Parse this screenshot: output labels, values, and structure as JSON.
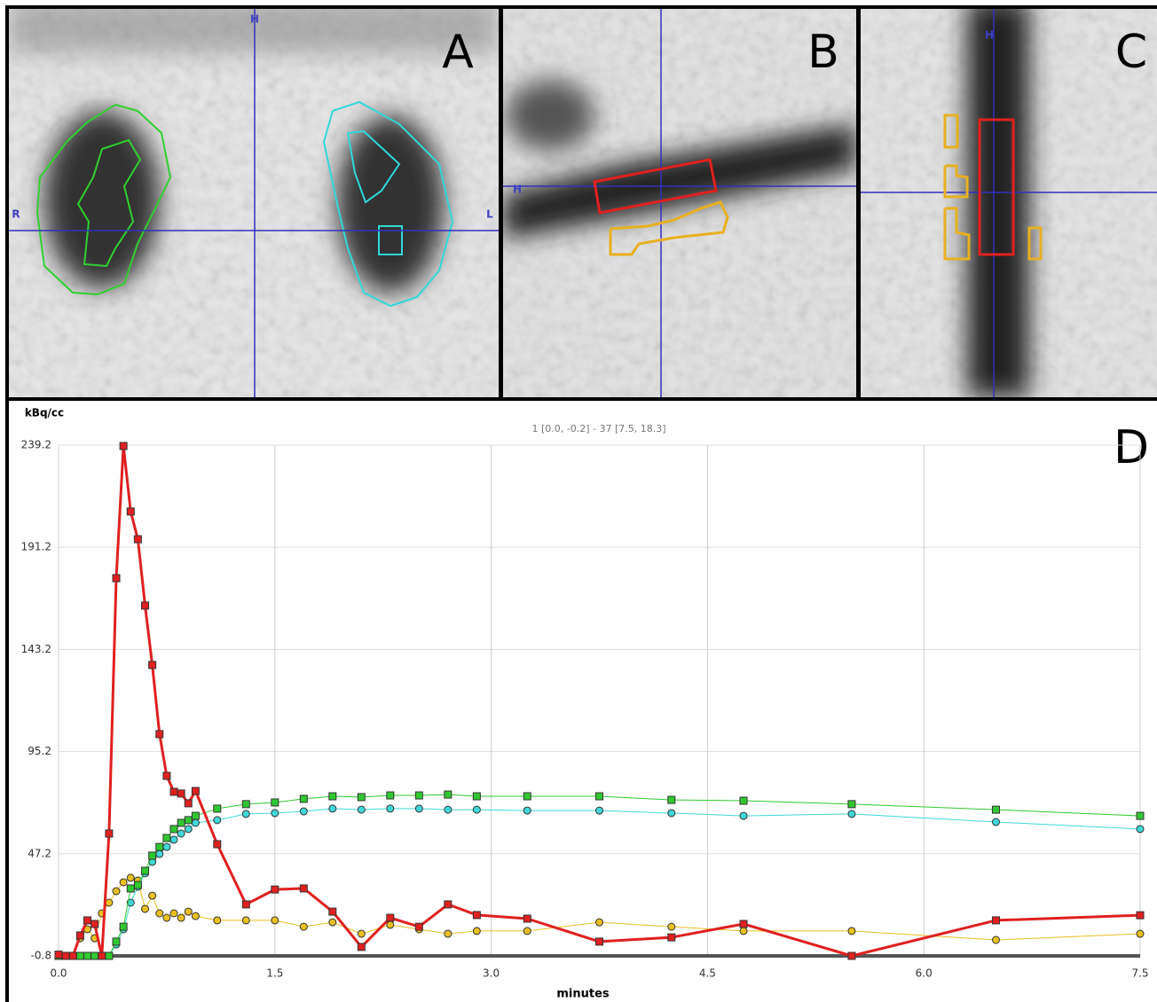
{
  "panels": [
    {
      "label": "A",
      "orientation": [
        "H",
        "R",
        "L"
      ]
    },
    {
      "label": "B",
      "orientation": [
        "H"
      ]
    },
    {
      "label": "C",
      "orientation": [
        "H"
      ]
    }
  ],
  "chart_data": {
    "type": "line",
    "label": "D",
    "annotation": "1 [0.0, -0.2] - 37 [7.5, 18.3]",
    "x_label": "minutes",
    "y_label": "kBq/cc",
    "x": [
      0,
      0.05,
      0.1,
      0.15,
      0.2,
      0.25,
      0.3,
      0.35,
      0.4,
      0.45,
      0.5,
      0.55,
      0.6,
      0.65,
      0.7,
      0.75,
      0.8,
      0.85,
      0.9,
      0.95,
      1.1,
      1.3,
      1.5,
      1.7,
      1.9,
      2.1,
      2.3,
      2.5,
      2.7,
      2.9,
      3.25,
      3.75,
      4.25,
      4.75,
      5.5,
      6.5,
      7.5
    ],
    "xlim": [
      0,
      7.5
    ],
    "xticks": [
      {
        "value": 0,
        "label": "0.0"
      },
      1.5,
      {
        "value": 3,
        "label": "3.0"
      },
      4.5,
      {
        "value": 6,
        "label": "6.0"
      },
      7.5
    ],
    "ylim": [
      -0.8,
      239.2
    ],
    "yticks": [
      -0.8,
      47.2,
      95.2,
      143.2,
      191.2,
      239.2
    ],
    "grid": true,
    "series": [
      {
        "color": "#e8c020",
        "marker": "circle",
        "width": 1,
        "values": [
          -0.8,
          -0.8,
          -0.8,
          7.5,
          11.7,
          7.5,
          19.2,
          24.2,
          29.6,
          33.8,
          35.9,
          34.6,
          21.3,
          27.5,
          19.2,
          17.1,
          19.2,
          17.1,
          20,
          17.9,
          15.9,
          15.9,
          15.9,
          12.9,
          15,
          9.6,
          13.8,
          11.7,
          9.6,
          10.9,
          10.9,
          15,
          12.9,
          10.9,
          10.9,
          6.7,
          9.6
        ]
      },
      {
        "color": "#40d8d8",
        "marker": "circle",
        "width": 1,
        "values": [
          -0.8,
          -0.8,
          -0.8,
          -0.8,
          -0.8,
          -0.8,
          -0.8,
          -0.8,
          4.6,
          11.7,
          24.2,
          31.7,
          38,
          43.4,
          47.1,
          50.4,
          53.8,
          56.7,
          58.8,
          61.7,
          63,
          65.9,
          66.3,
          67.1,
          68.4,
          67.9,
          68.4,
          68.4,
          67.9,
          67.9,
          67.5,
          67.5,
          66.3,
          65,
          65.9,
          62.1,
          58.8
        ]
      },
      {
        "color": "#30c830",
        "marker": "square",
        "width": 1,
        "values": [
          -0.8,
          -0.8,
          -0.8,
          -0.8,
          -0.8,
          -0.8,
          -0.8,
          -0.8,
          5.9,
          12.9,
          30.9,
          32.5,
          39.2,
          46.3,
          50.4,
          54.6,
          58.8,
          61.7,
          63,
          65,
          68.4,
          70.5,
          71.3,
          73,
          74.2,
          73.8,
          74.6,
          74.6,
          75,
          74.2,
          74.2,
          74.2,
          72.5,
          72.1,
          70.5,
          67.9,
          65
        ]
      },
      {
        "color": "#e02020",
        "marker": "square",
        "width": 3,
        "values": [
          -0.2,
          -0.8,
          -0.8,
          8.8,
          15.9,
          14.2,
          -0.8,
          56.7,
          176.7,
          238.8,
          208,
          195,
          163.8,
          135.9,
          103.4,
          83.8,
          76.3,
          75.5,
          70.9,
          76.7,
          51.7,
          23.4,
          30.4,
          30.9,
          20,
          3.4,
          17.1,
          12.9,
          23.4,
          18.4,
          16.7,
          5.9,
          7.9,
          14.2,
          -0.8,
          15.9,
          18.3
        ]
      }
    ]
  }
}
